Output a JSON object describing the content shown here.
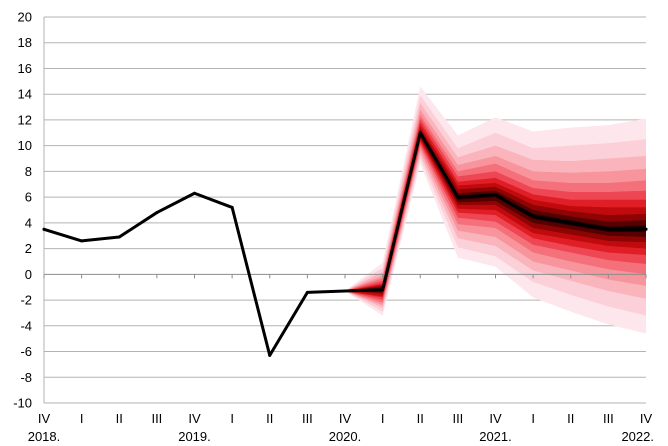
{
  "chart_data": {
    "type": "line",
    "title": "",
    "xlabel": "",
    "ylabel": "",
    "ylim": [
      -10,
      20
    ],
    "yticks": [
      -10,
      -8,
      -6,
      -4,
      -2,
      0,
      2,
      4,
      6,
      8,
      10,
      12,
      14,
      16,
      18,
      20
    ],
    "grid": "horizontal",
    "legend": "none",
    "quarters": [
      "IV",
      "I",
      "II",
      "III",
      "IV",
      "I",
      "II",
      "III",
      "IV",
      "I",
      "II",
      "III",
      "IV",
      "I",
      "II",
      "III",
      "IV"
    ],
    "years": [
      {
        "label": "2018.",
        "index": 0
      },
      {
        "label": "2019.",
        "index": 4
      },
      {
        "label": "2020.",
        "index": 8
      },
      {
        "label": "2021.",
        "index": 12
      },
      {
        "label": "2022.",
        "index": 16
      }
    ],
    "series": [
      {
        "values": [
          3.5,
          2.6,
          2.9,
          4.8,
          6.3,
          5.2,
          -6.3,
          -1.4,
          -1.3,
          -1.2,
          11.0,
          6.0,
          6.2,
          4.5,
          4.0,
          3.5,
          3.5
        ],
        "color": "#000000"
      }
    ],
    "fan": {
      "start_index": 8,
      "colors": [
        "#fde6ec",
        "#fcd0d8",
        "#fab4bc",
        "#f8949c",
        "#f4707a",
        "#ee4652",
        "#e01e26",
        "#c00a0e",
        "#8e0404",
        "#560000",
        "#200000"
      ],
      "bands": [
        {
          "lower": [
            -1.3,
            -3.2,
            8.6,
            1.3,
            0.6,
            -1.8,
            -2.9,
            -3.9,
            -4.6
          ],
          "upper": [
            -1.3,
            0.9,
            14.6,
            10.8,
            12.2,
            11.1,
            11.4,
            11.6,
            12.1
          ]
        },
        {
          "lower": [
            -1.3,
            -2.9,
            9.0,
            2.1,
            1.4,
            -0.6,
            -1.6,
            -2.5,
            -3.2
          ],
          "upper": [
            -1.3,
            0.5,
            13.9,
            9.8,
            11.0,
            9.8,
            10.0,
            10.2,
            10.5
          ]
        },
        {
          "lower": [
            -1.3,
            -2.6,
            9.3,
            2.8,
            2.2,
            0.3,
            -0.5,
            -1.3,
            -1.9
          ],
          "upper": [
            -1.3,
            0.2,
            13.3,
            9.1,
            10.0,
            8.9,
            8.8,
            9.0,
            9.2
          ]
        },
        {
          "lower": [
            -1.3,
            -2.4,
            9.6,
            3.4,
            2.9,
            1.0,
            0.3,
            -0.4,
            -0.9
          ],
          "upper": [
            -1.3,
            -0.1,
            12.8,
            8.5,
            9.2,
            8.0,
            7.9,
            8.0,
            8.2
          ]
        },
        {
          "lower": [
            -1.3,
            -2.2,
            9.9,
            3.9,
            3.6,
            1.7,
            1.0,
            0.4,
            0.0
          ],
          "upper": [
            -1.3,
            -0.3,
            12.4,
            8.0,
            8.6,
            7.3,
            7.1,
            7.1,
            7.3
          ]
        },
        {
          "lower": [
            -1.3,
            -2.0,
            10.1,
            4.4,
            4.1,
            2.3,
            1.7,
            1.1,
            0.8
          ],
          "upper": [
            -1.3,
            -0.5,
            12.1,
            7.6,
            8.0,
            6.7,
            6.4,
            6.4,
            6.5
          ]
        },
        {
          "lower": [
            -1.3,
            -1.8,
            10.3,
            4.8,
            4.6,
            2.8,
            2.2,
            1.7,
            1.5
          ],
          "upper": [
            -1.3,
            -0.7,
            11.8,
            7.2,
            7.5,
            6.2,
            5.8,
            5.8,
            5.8
          ]
        },
        {
          "lower": [
            -1.3,
            -1.7,
            10.5,
            5.1,
            5.0,
            3.2,
            2.7,
            2.2,
            2.0
          ],
          "upper": [
            -1.3,
            -0.8,
            11.5,
            6.9,
            7.1,
            5.8,
            5.3,
            5.2,
            5.2
          ]
        },
        {
          "lower": [
            -1.3,
            -1.5,
            10.6,
            5.4,
            5.4,
            3.6,
            3.1,
            2.6,
            2.5
          ],
          "upper": [
            -1.3,
            -0.9,
            11.3,
            6.6,
            6.8,
            5.4,
            4.9,
            4.6,
            4.7
          ]
        },
        {
          "lower": [
            -1.3,
            -1.4,
            10.8,
            5.6,
            5.7,
            4.0,
            3.5,
            3.0,
            2.9
          ],
          "upper": [
            -1.3,
            -1.0,
            11.2,
            6.3,
            6.5,
            5.0,
            4.5,
            4.1,
            4.2
          ]
        },
        {
          "lower": [
            -1.3,
            -1.3,
            10.9,
            5.8,
            6.0,
            4.3,
            3.8,
            3.3,
            3.3
          ],
          "upper": [
            -1.3,
            -1.1,
            11.1,
            6.1,
            6.3,
            4.7,
            4.2,
            3.7,
            3.8
          ]
        }
      ]
    }
  }
}
